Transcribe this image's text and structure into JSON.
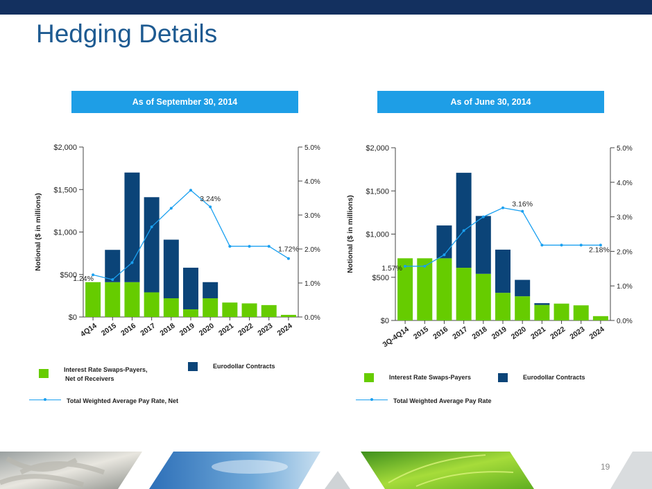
{
  "slide": {
    "title": "Hedging Details",
    "page_number": "19"
  },
  "colors": {
    "swaps": "#66cc00",
    "eurodollar": "#0b4478",
    "rate_line": "#1aa0f0",
    "banner": "#1e9ee6",
    "title": "#1d5a91",
    "top_bar": "#13305f"
  },
  "footer": {
    "images": [
      "rope-image",
      "sky-image",
      "leaf-image"
    ]
  },
  "chart_data": [
    {
      "type": "bar",
      "banner": "As of September 30, 2014",
      "ylabel": "Notional ($ in millions)",
      "ylim": [
        0,
        2000
      ],
      "y_ticks": [
        "$2,000",
        "$1,500",
        "$1,000",
        "$500",
        "$0"
      ],
      "y2lim": [
        0,
        5
      ],
      "y2_ticks": [
        "5.0%",
        "4.0%",
        "3.0%",
        "2.0%",
        "1.0%",
        "0.0%"
      ],
      "categories": [
        "4Q14",
        "2015",
        "2016",
        "2017",
        "2018",
        "2019",
        "2020",
        "2021",
        "2022",
        "2023",
        "2024"
      ],
      "stacked": true,
      "series": [
        {
          "name": "Interest Rate Swaps-Payers, Net of Receivers",
          "values": [
            410,
            410,
            410,
            290,
            220,
            90,
            220,
            170,
            160,
            140,
            25
          ]
        },
        {
          "name": "Eurodollar Contracts",
          "values": [
            0,
            380,
            1290,
            1120,
            690,
            490,
            190,
            0,
            0,
            0,
            0
          ]
        }
      ],
      "line": {
        "name": "Total Weighted Average Pay Rate, Net",
        "values": [
          1.24,
          1.1,
          1.6,
          2.65,
          3.2,
          3.73,
          3.24,
          2.08,
          2.08,
          2.08,
          1.72
        ]
      },
      "annotations": [
        {
          "text": "1.24%",
          "index": 0
        },
        {
          "text": "3.24%",
          "index": 6
        },
        {
          "text": "1.72%",
          "index": 10
        }
      ],
      "legend": {
        "swaps_line1": "Interest Rate Swaps-Payers,",
        "swaps_line2": "Net of Receivers",
        "eurodollar": "Eurodollar Contracts",
        "rate": "Total Weighted Average Pay Rate, Net"
      }
    },
    {
      "type": "bar",
      "banner": "As of June 30, 2014",
      "ylabel": "Notional ($ in millions)",
      "ylim": [
        0,
        2000
      ],
      "y_ticks": [
        "$2,000",
        "$1,500",
        "$1,000",
        "$500",
        "$0"
      ],
      "y2lim": [
        0,
        5
      ],
      "y2_ticks": [
        "5.0%",
        "4.0%",
        "3.0%",
        "2.0%",
        "1.0%",
        "0.0%"
      ],
      "categories": [
        "3Q-4Q14",
        "2015",
        "2016",
        "2017",
        "2018",
        "2019",
        "2020",
        "2021",
        "2022",
        "2023",
        "2024"
      ],
      "stacked": true,
      "series": [
        {
          "name": "Interest Rate Swaps-Payers",
          "values": [
            720,
            720,
            720,
            610,
            540,
            320,
            280,
            180,
            195,
            175,
            50
          ]
        },
        {
          "name": "Eurodollar Contracts",
          "values": [
            0,
            0,
            380,
            1100,
            670,
            500,
            190,
            20,
            0,
            0,
            0
          ]
        }
      ],
      "line": {
        "name": "Total Weighted Average Pay Rate",
        "values": [
          1.57,
          1.57,
          1.9,
          2.6,
          3.0,
          3.26,
          3.16,
          2.18,
          2.18,
          2.18,
          2.18
        ]
      },
      "annotations": [
        {
          "text": "1.57%",
          "index": 0
        },
        {
          "text": "3.16%",
          "index": 6
        },
        {
          "text": "2.18%",
          "index": 10
        }
      ],
      "legend": {
        "swaps_line1": "Interest Rate Swaps-Payers",
        "swaps_line2": "",
        "eurodollar": "Eurodollar Contracts",
        "rate": "Total Weighted Average Pay Rate"
      }
    }
  ]
}
